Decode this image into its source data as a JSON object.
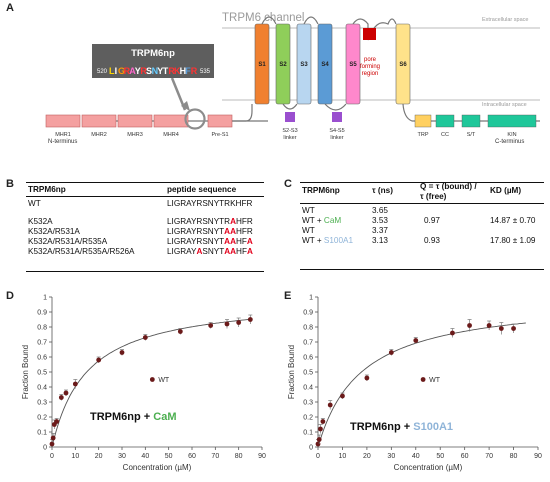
{
  "panel_labels": {
    "a": "A",
    "b": "B",
    "c": "C",
    "d": "D",
    "e": "E"
  },
  "diagram": {
    "channel_title": "TRPM6 channel",
    "extracellular": "Extracellular space",
    "intracellular": "Intracellular space",
    "segments": [
      "S1",
      "S2",
      "S3",
      "S4",
      "S5",
      "S6"
    ],
    "segment_colors": [
      "#f08030",
      "#8fce5a",
      "#b8d6f0",
      "#5b9bd5",
      "#ff88cc",
      "#ffe28a"
    ],
    "pore_label": [
      "pore",
      "forming",
      "region"
    ],
    "pore_color": "#cc0000",
    "mhr_domains": [
      "MHR1",
      "MHR2",
      "MHR3",
      "MHR4",
      "Pre-S1"
    ],
    "mhr_color": "#f4a0a0",
    "c_domains": [
      "TRP",
      "CC",
      "S/T",
      "KIN"
    ],
    "trp_color": "#ffd060",
    "c_color": "#1fc79a",
    "linkers": [
      "S2-S3",
      "S4-S5"
    ],
    "linker_word": "linker",
    "linker_color": "#9a4fcf",
    "n_terminus": "N-terminus",
    "c_terminus": "C-terminus",
    "peptide_box": {
      "title": "TRPM6np",
      "start": "520",
      "end": "535",
      "residues": [
        "L",
        "I",
        "G",
        "R",
        "A",
        "Y",
        "R",
        "S",
        "N",
        "Y",
        "T",
        "R",
        "K",
        "H",
        "F",
        "R"
      ],
      "residue_colors": [
        "#ffd700",
        "#ffffff",
        "#ff9900",
        "#ff3333",
        "#ff66cc",
        "#ffffff",
        "#ff3333",
        "#ffffff",
        "#66ccff",
        "#ffffff",
        "#ffffff",
        "#ff3333",
        "#ff3333",
        "#ffffff",
        "#5b9bd5",
        "#ff3333"
      ]
    }
  },
  "table_b": {
    "headers": [
      "TRPM6np",
      "peptide sequence"
    ],
    "rows": [
      {
        "name": "WT",
        "seq": [
          {
            "t": "LIGRAYRSNYTRKHFR",
            "h": false
          }
        ]
      },
      {
        "name": "K532A",
        "seq": [
          {
            "t": "LIGRAYRSNYTR",
            "h": false
          },
          {
            "t": "A",
            "h": true
          },
          {
            "t": "HFR",
            "h": false
          }
        ]
      },
      {
        "name": "K532A/R531A",
        "seq": [
          {
            "t": "LIGRAYRSNYT",
            "h": false
          },
          {
            "t": "AA",
            "h": true
          },
          {
            "t": "HFR",
            "h": false
          }
        ]
      },
      {
        "name": "K532A/R531A/R535A",
        "seq": [
          {
            "t": "LIGRAYRSNYT",
            "h": false
          },
          {
            "t": "AA",
            "h": true
          },
          {
            "t": "HF",
            "h": false
          },
          {
            "t": "A",
            "h": true
          }
        ]
      },
      {
        "name": "K532A/R531A/R535A/R526A",
        "seq": [
          {
            "t": "LIGRAY",
            "h": false
          },
          {
            "t": "A",
            "h": true
          },
          {
            "t": "SNYT",
            "h": false
          },
          {
            "t": "AA",
            "h": true
          },
          {
            "t": "HF",
            "h": false
          },
          {
            "t": "A",
            "h": true
          }
        ]
      }
    ]
  },
  "table_c": {
    "headers": [
      "TRPM6np",
      "τ (ns)",
      "Q = τ (bound) /",
      "τ (free)",
      "KD (µM)"
    ],
    "rows": [
      {
        "name": "WT",
        "partner": "",
        "partner_color": "",
        "tau": "3.65",
        "q": "",
        "kd": ""
      },
      {
        "name": "WT + ",
        "partner": "CaM",
        "partner_color": "#4caf50",
        "tau": "3.53",
        "q": "0.97",
        "kd": "14.87  ± 0.70"
      },
      {
        "name": "WT",
        "partner": "",
        "partner_color": "",
        "tau": "3.37",
        "q": "",
        "kd": ""
      },
      {
        "name": "WT + ",
        "partner": "S100A1",
        "partner_color": "#8fb4d8",
        "tau": "3.13",
        "q": "0.93",
        "kd": "17.80 ± 1.09"
      }
    ]
  },
  "chart_data": [
    {
      "type": "scatter",
      "panel": "D",
      "xlabel": "Concentration (µM)",
      "ylabel": "Fraction Bound",
      "xlim": [
        0,
        90
      ],
      "ylim": [
        0,
        1.0
      ],
      "xticks": [
        0,
        10,
        20,
        30,
        40,
        50,
        60,
        70,
        80,
        90
      ],
      "yticks": [
        0,
        0.1,
        0.2,
        0.3,
        0.4,
        0.5,
        0.6,
        0.7,
        0.8,
        0.9,
        1.0
      ],
      "grid": false,
      "legend": "WT",
      "legend_position": "center-right",
      "annotation": {
        "prefix": "TRPM6np + ",
        "partner": "CaM",
        "partner_color": "#4caf50"
      },
      "fit": {
        "bmax": 1.0,
        "kd": 14.87
      },
      "points": [
        {
          "x": 0,
          "y": 0.02,
          "e": 0.03
        },
        {
          "x": 0.5,
          "y": 0.06,
          "e": 0.03
        },
        {
          "x": 1,
          "y": 0.15,
          "e": 0.03
        },
        {
          "x": 2,
          "y": 0.17,
          "e": 0.02
        },
        {
          "x": 4,
          "y": 0.33,
          "e": 0.02
        },
        {
          "x": 6,
          "y": 0.36,
          "e": 0.02
        },
        {
          "x": 10,
          "y": 0.42,
          "e": 0.03
        },
        {
          "x": 20,
          "y": 0.58,
          "e": 0.02
        },
        {
          "x": 30,
          "y": 0.63,
          "e": 0.02
        },
        {
          "x": 40,
          "y": 0.73,
          "e": 0.02
        },
        {
          "x": 55,
          "y": 0.77,
          "e": 0.02
        },
        {
          "x": 68,
          "y": 0.81,
          "e": 0.02
        },
        {
          "x": 75,
          "y": 0.82,
          "e": 0.03
        },
        {
          "x": 80,
          "y": 0.83,
          "e": 0.03
        },
        {
          "x": 85,
          "y": 0.85,
          "e": 0.03
        }
      ]
    },
    {
      "type": "scatter",
      "panel": "E",
      "xlabel": "Concentration (µM)",
      "ylabel": "Fraction Bound",
      "xlim": [
        0,
        90
      ],
      "ylim": [
        0,
        1.0
      ],
      "xticks": [
        0,
        10,
        20,
        30,
        40,
        50,
        60,
        70,
        80,
        90
      ],
      "yticks": [
        0,
        0.1,
        0.2,
        0.3,
        0.4,
        0.5,
        0.6,
        0.7,
        0.8,
        0.9,
        1.0
      ],
      "grid": false,
      "legend": "WT",
      "legend_position": "center-right",
      "annotation": {
        "prefix": "TRPM6np + ",
        "partner": "S100A1",
        "partner_color": "#8fb4d8"
      },
      "fit": {
        "bmax": 1.0,
        "kd": 17.8
      },
      "points": [
        {
          "x": 0,
          "y": 0.02,
          "e": 0.03
        },
        {
          "x": 0.5,
          "y": 0.05,
          "e": 0.03
        },
        {
          "x": 1,
          "y": 0.12,
          "e": 0.03
        },
        {
          "x": 2,
          "y": 0.17,
          "e": 0.02
        },
        {
          "x": 5,
          "y": 0.28,
          "e": 0.03
        },
        {
          "x": 10,
          "y": 0.34,
          "e": 0.02
        },
        {
          "x": 20,
          "y": 0.46,
          "e": 0.02
        },
        {
          "x": 30,
          "y": 0.63,
          "e": 0.02
        },
        {
          "x": 40,
          "y": 0.71,
          "e": 0.02
        },
        {
          "x": 55,
          "y": 0.76,
          "e": 0.03
        },
        {
          "x": 62,
          "y": 0.81,
          "e": 0.04
        },
        {
          "x": 70,
          "y": 0.81,
          "e": 0.03
        },
        {
          "x": 75,
          "y": 0.79,
          "e": 0.04
        },
        {
          "x": 80,
          "y": 0.79,
          "e": 0.03
        }
      ]
    }
  ]
}
